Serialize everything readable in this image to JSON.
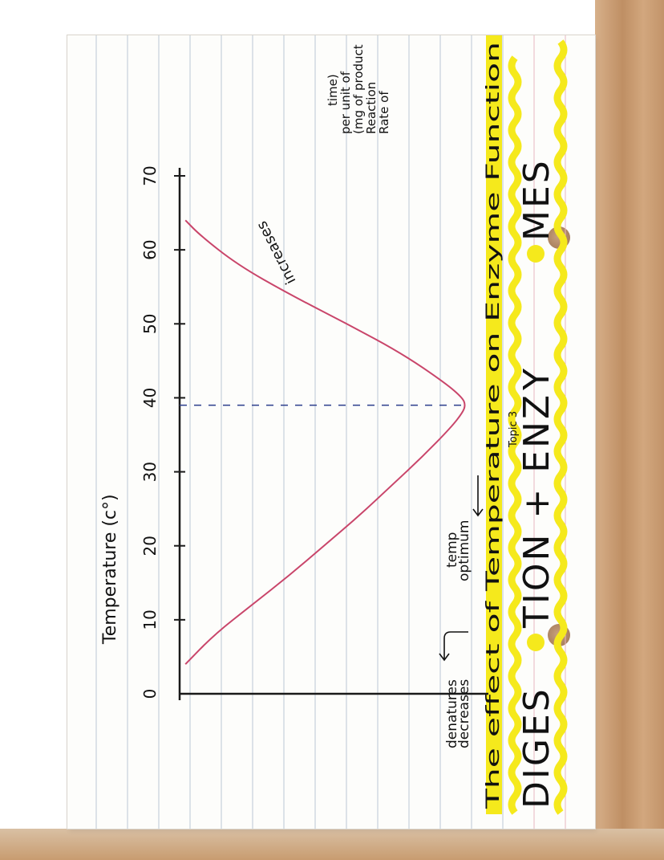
{
  "heading": {
    "title_part1": "DIGES",
    "title_part2": "TION + EN",
    "title_part3": "ZY",
    "title_part4": "MES",
    "topic": "Topic 3",
    "subtitle": "The effect of Temperature on Enzyme Function"
  },
  "colors": {
    "highlight": "#f5e91c",
    "curve": "#c9456a",
    "axis": "#1a1a1a",
    "dashed": "#2c3e8c",
    "ruled_line": "#bcc6d6",
    "margin_line": "#e7b7c0"
  },
  "annotations": {
    "increases": "increases",
    "optimum_line1": "optimum",
    "optimum_line2": "temp",
    "decreases_line1": "decreases",
    "decreases_line2": "denatures"
  },
  "chart_data": {
    "type": "line",
    "xlabel": "Temperature (c°)",
    "ylabel_lines": [
      "Rate of",
      "Reaction",
      "(mg of product",
      "per unit of",
      "time)"
    ],
    "x_ticks": [
      "0",
      "10",
      "20",
      "30",
      "40",
      "50",
      "60",
      "70"
    ],
    "xlim": [
      0,
      70
    ],
    "ylim": [
      0,
      1
    ],
    "optimum_x": 39,
    "series": [
      {
        "x": [
          4,
          8,
          12,
          16,
          20,
          24,
          28,
          32,
          36,
          38,
          39,
          40,
          42,
          46,
          50,
          54,
          58,
          62,
          64
        ],
        "values": [
          0.02,
          0.12,
          0.25,
          0.38,
          0.5,
          0.62,
          0.73,
          0.84,
          0.94,
          0.98,
          0.99,
          0.98,
          0.92,
          0.77,
          0.58,
          0.38,
          0.2,
          0.07,
          0.02
        ]
      }
    ]
  }
}
